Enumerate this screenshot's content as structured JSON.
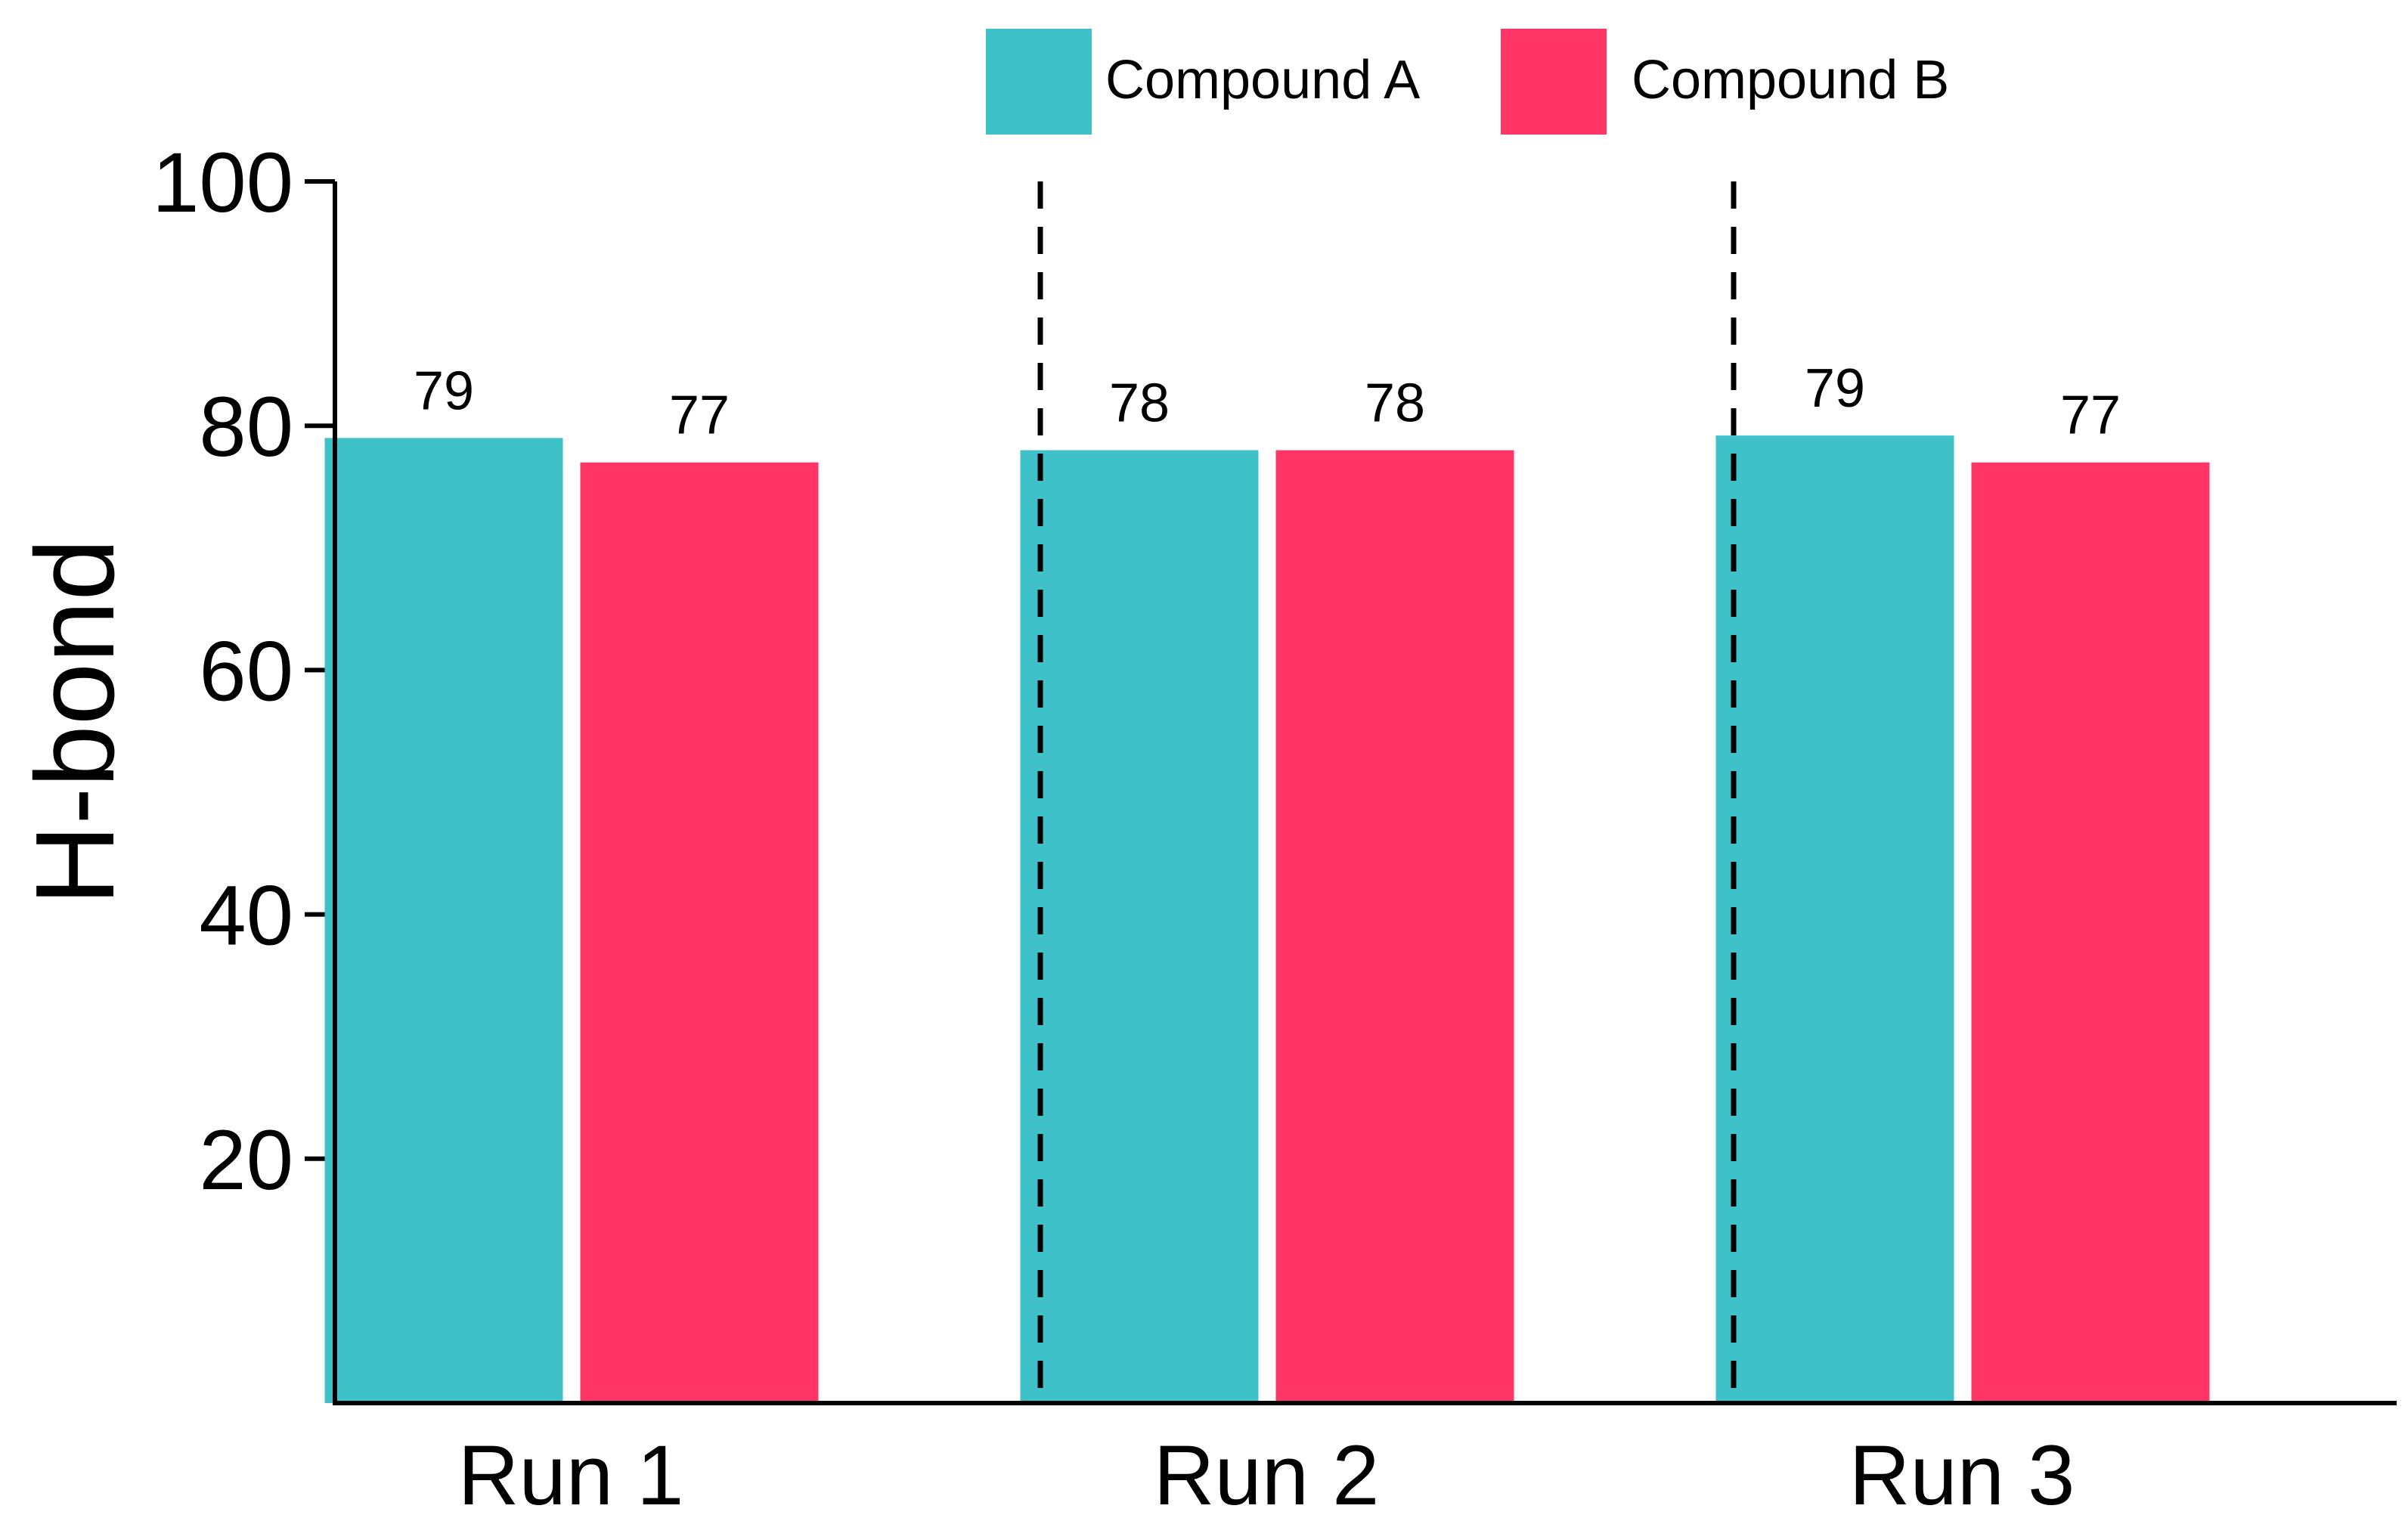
{
  "chart_data": {
    "type": "bar",
    "title": "",
    "xlabel": "",
    "ylabel": "H-bond",
    "ylim": [
      0,
      100
    ],
    "yticks": [
      20,
      40,
      60,
      80,
      100
    ],
    "categories": [
      "Run 1",
      "Run 2",
      "Run 3"
    ],
    "series": [
      {
        "name": "Compound A",
        "color": "#3EC1C8",
        "values": [
          79,
          78,
          79.2
        ]
      },
      {
        "name": "Compound B",
        "color": "#FF3565",
        "values": [
          77,
          78,
          77
        ]
      }
    ],
    "data_labels": [
      [
        "79",
        "78",
        "79"
      ],
      [
        "77",
        "78",
        "77"
      ]
    ],
    "legend_position": "top-right",
    "separators": "dashed vertical lines between categories",
    "grid": false
  }
}
